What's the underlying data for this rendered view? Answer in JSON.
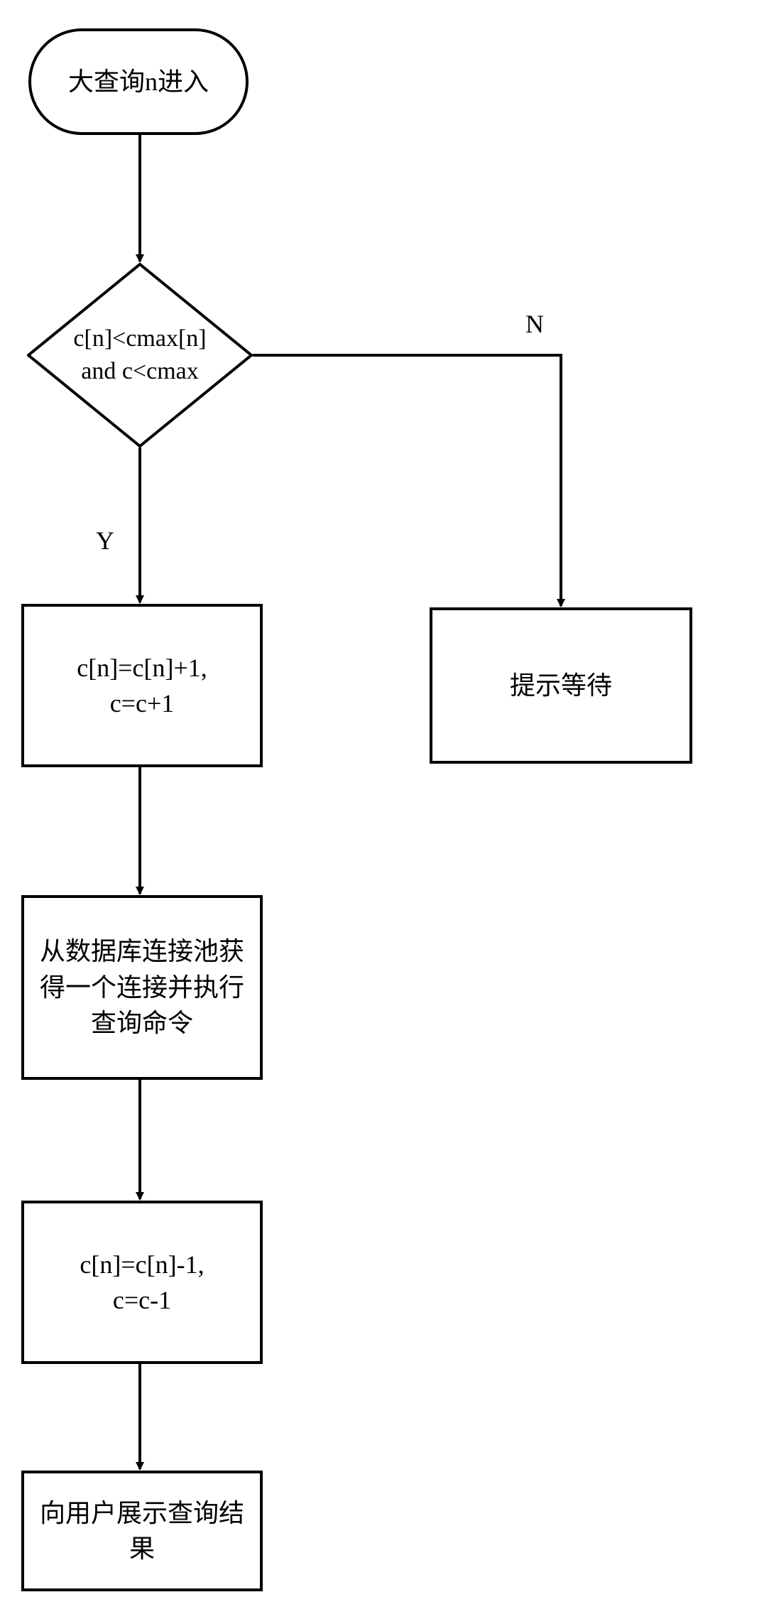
{
  "stroke": "#000000",
  "strokeWidth": 4,
  "arrowSize": 18,
  "nodes": {
    "start": {
      "text": "大查询n进入"
    },
    "decision": {
      "text": "c[n]<cmax[n]\nand c<cmax"
    },
    "inc": {
      "text": "c[n]=c[n]+1,\nc=c+1"
    },
    "wait": {
      "text": "提示等待"
    },
    "exec": {
      "text": "从数据库连接池获\n得一个连接并执行\n查询命令"
    },
    "dec": {
      "text": "c[n]=c[n]-1,\nc=c-1"
    },
    "show": {
      "text": "向用户展示查询结\n果"
    }
  },
  "edgeLabels": {
    "yes": "Y",
    "no": "N"
  }
}
